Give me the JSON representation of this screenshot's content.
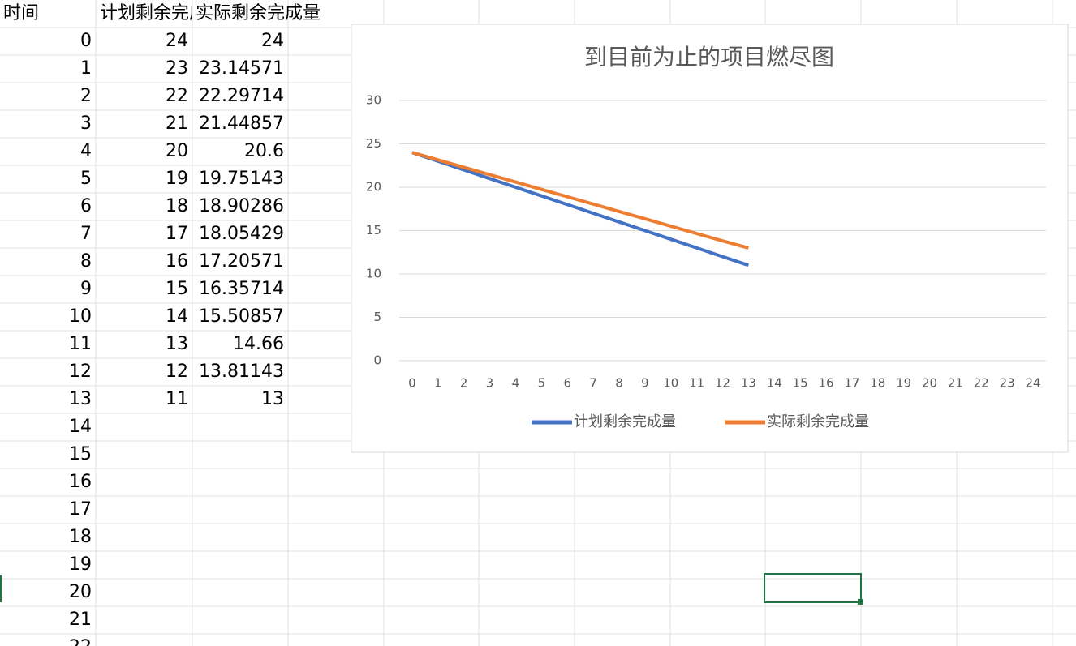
{
  "sheet": {
    "header": [
      "时间"
    ]
  },
  "chart_data": {
    "type": "line",
    "title": "到目前为止的项目燃尽图",
    "categories": [
      0,
      1,
      2,
      3,
      4,
      5,
      6,
      7,
      8,
      9,
      10,
      11,
      12,
      13,
      14,
      15,
      16,
      17,
      18,
      19,
      20,
      21,
      22,
      23,
      24
    ],
    "series": [
      {
        "name": "计划剩余完成量",
        "color": "#4472c4",
        "values": [
          24,
          23,
          22,
          21,
          20,
          19,
          18,
          17,
          16,
          15,
          14,
          13,
          12,
          11,
          null,
          null,
          null,
          null,
          null,
          null,
          null,
          null,
          null,
          null,
          null
        ]
      },
      {
        "name": "实际剩余完成量",
        "color": "#ed7d31",
        "values": [
          24,
          23.14571,
          22.29714,
          21.44857,
          20.6,
          19.75143,
          18.90286,
          18.05429,
          17.20571,
          16.35714,
          15.50857,
          14.66,
          13.81143,
          13,
          null,
          null,
          null,
          null,
          null,
          null,
          null,
          null,
          null,
          null,
          null
        ]
      }
    ],
    "ylim": [
      0,
      30
    ],
    "yticks": [
      0,
      5,
      10,
      15,
      20,
      25,
      30
    ],
    "grid": true,
    "legend": "bottom"
  }
}
